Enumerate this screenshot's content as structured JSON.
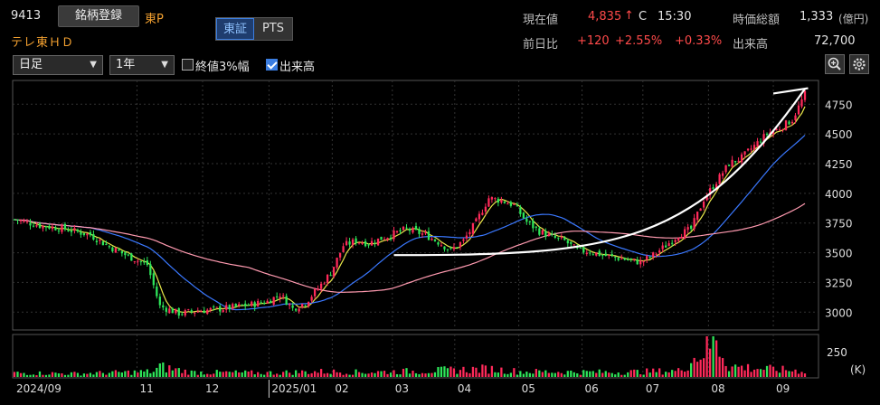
{
  "header": {
    "code": "9413",
    "register_button": "銘柄登録",
    "market": "東P",
    "name": "テレ東ＨＤ",
    "exchange_tabs": [
      {
        "label": "東証",
        "active": true
      },
      {
        "label": "PTS",
        "active": false
      }
    ],
    "price_label": "現在値",
    "price": "4,835",
    "price_arrow": "↑",
    "price_flag": "C",
    "price_time": "15:30",
    "mcap_label": "時価総額",
    "mcap_value": "1,333",
    "mcap_unit": "(億円)",
    "change_label": "前日比",
    "change_abs": "+120",
    "change_pct": "+2.55%",
    "change_pct2": "+0.33%",
    "volume_label": "出来高",
    "volume_value": "72,700"
  },
  "toolbar": {
    "period_select": "日足",
    "range_select": "1年",
    "close3_label": "終値3%幅",
    "close3_checked": false,
    "volume_label": "出来高",
    "volume_checked": true,
    "zoom_icon": "zoom-in-icon",
    "settings_icon": "gear-icon"
  },
  "colors": {
    "up": "#ff2a5a",
    "down": "#2ee65a",
    "ma_short": "#e8e84a",
    "ma_mid": "#3a78ff",
    "ma_long": "#ff9ab0",
    "annotation": "#ffffff"
  },
  "chart_data": {
    "type": "candlestick",
    "x_ticks": [
      "2024/09",
      "11",
      "12",
      "2025/01",
      "02",
      "03",
      "04",
      "05",
      "06",
      "07",
      "08",
      "09"
    ],
    "y_ticks": [
      3000,
      3250,
      3500,
      3750,
      4000,
      4250,
      4500,
      4750
    ],
    "ylim": [
      2850,
      4950
    ],
    "volume_ticks": [
      "250"
    ],
    "volume_unit": "(K)",
    "volume_ylim": [
      0,
      300
    ],
    "close_trend": [
      [
        0,
        3780
      ],
      [
        8,
        3730
      ],
      [
        16,
        3700
      ],
      [
        24,
        3650
      ],
      [
        30,
        3550
      ],
      [
        36,
        3470
      ],
      [
        42,
        3400
      ],
      [
        46,
        3050
      ],
      [
        52,
        2990
      ],
      [
        58,
        3010
      ],
      [
        66,
        3030
      ],
      [
        74,
        3060
      ],
      [
        80,
        3090
      ],
      [
        84,
        3150
      ],
      [
        88,
        3030
      ],
      [
        92,
        3080
      ],
      [
        96,
        3200
      ],
      [
        100,
        3330
      ],
      [
        104,
        3560
      ],
      [
        108,
        3600
      ],
      [
        112,
        3580
      ],
      [
        118,
        3640
      ],
      [
        124,
        3700
      ],
      [
        130,
        3650
      ],
      [
        134,
        3590
      ],
      [
        138,
        3520
      ],
      [
        142,
        3600
      ],
      [
        146,
        3760
      ],
      [
        150,
        3960
      ],
      [
        154,
        3940
      ],
      [
        158,
        3900
      ],
      [
        162,
        3760
      ],
      [
        166,
        3680
      ],
      [
        170,
        3630
      ],
      [
        174,
        3600
      ],
      [
        178,
        3520
      ],
      [
        182,
        3510
      ],
      [
        186,
        3480
      ],
      [
        190,
        3460
      ],
      [
        194,
        3440
      ],
      [
        198,
        3420
      ],
      [
        202,
        3480
      ],
      [
        206,
        3560
      ],
      [
        210,
        3650
      ],
      [
        214,
        3700
      ],
      [
        218,
        3950
      ],
      [
        222,
        4100
      ],
      [
        226,
        4250
      ],
      [
        230,
        4300
      ],
      [
        234,
        4400
      ],
      [
        238,
        4500
      ],
      [
        242,
        4550
      ],
      [
        246,
        4620
      ],
      [
        250,
        4835
      ]
    ],
    "volume_trend": [
      [
        0,
        30
      ],
      [
        20,
        25
      ],
      [
        44,
        40
      ],
      [
        46,
        75
      ],
      [
        56,
        35
      ],
      [
        80,
        30
      ],
      [
        96,
        40
      ],
      [
        110,
        35
      ],
      [
        130,
        45
      ],
      [
        150,
        60
      ],
      [
        160,
        40
      ],
      [
        190,
        35
      ],
      [
        210,
        45
      ],
      [
        222,
        270
      ],
      [
        226,
        80
      ],
      [
        240,
        55
      ],
      [
        250,
        45
      ]
    ]
  }
}
